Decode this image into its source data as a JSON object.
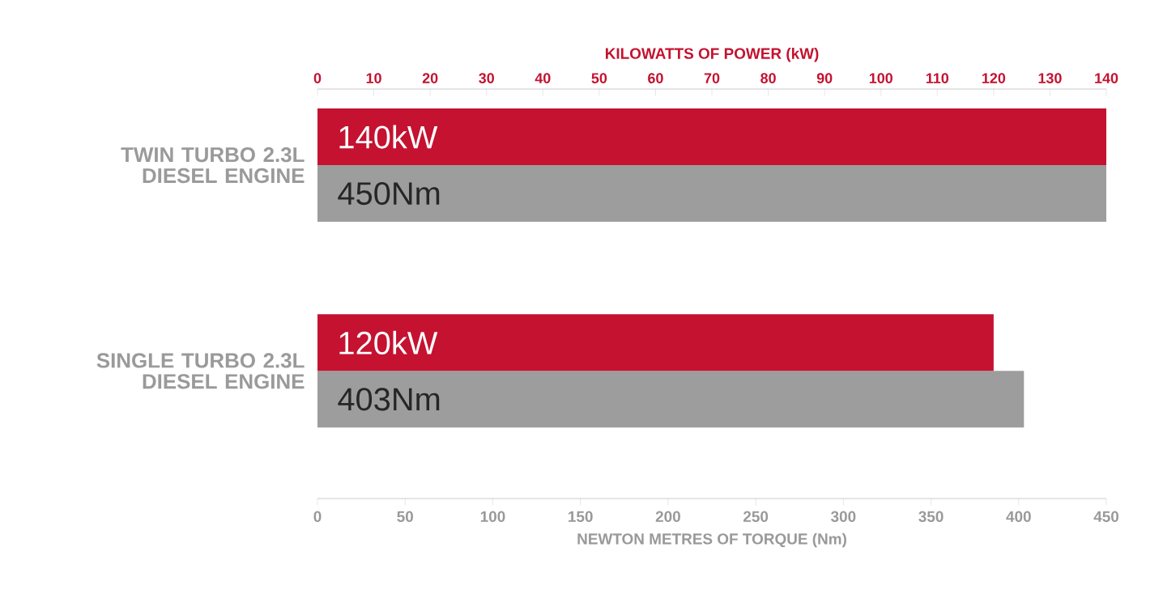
{
  "chart_data": {
    "type": "bar",
    "orientation": "horizontal",
    "categories": [
      "TWIN TURBO 2.3L DIESEL ENGINE",
      "SINGLE TURBO 2.3L DIESEL ENGINE"
    ],
    "series": [
      {
        "color": "#c41230",
        "values": [
          140,
          120
        ],
        "axis": "x2",
        "value_labels": [
          "140kW",
          "120kW"
        ]
      },
      {
        "color": "#9d9d9e",
        "values": [
          450,
          403
        ],
        "value_labels": [
          "450Nm",
          "403Nm"
        ]
      }
    ],
    "xlabel": "NEWTON METRES OF TORQUE (Nm)",
    "x2label": "KILOWATTS OF POWER (kW)",
    "xlim": [
      0,
      450
    ],
    "xticks": [
      0,
      50,
      100,
      150,
      200,
      250,
      300,
      350,
      400,
      450
    ],
    "x2lim": [
      0,
      140
    ],
    "x2ticks": [
      0,
      10,
      20,
      30,
      40,
      50,
      60,
      70,
      80,
      90,
      100,
      110,
      120,
      130,
      140
    ]
  }
}
